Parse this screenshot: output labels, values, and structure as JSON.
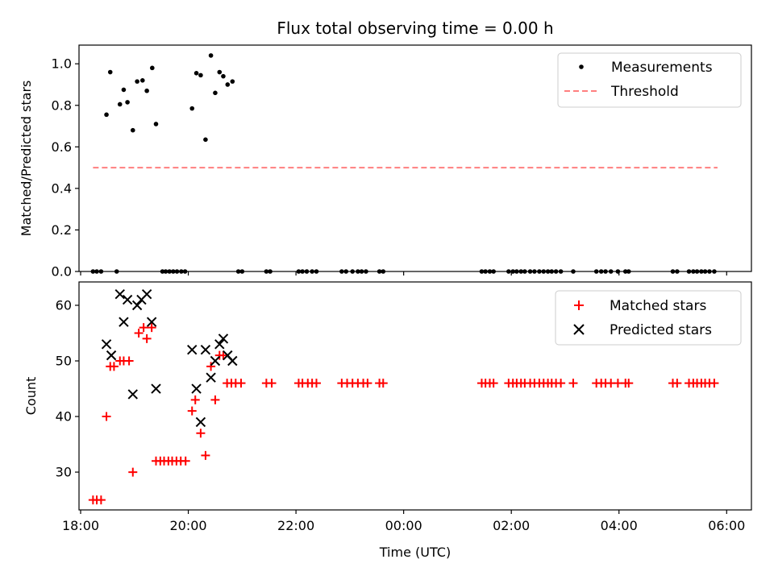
{
  "chart_data": [
    {
      "type": "scatter",
      "title": "Flux total observing time = 0.00 h",
      "xlabel": "",
      "ylabel": "Matched/Predicted stars",
      "xlim": [
        17.97,
        30.46
      ],
      "ylim": [
        0.0,
        1.09
      ],
      "yticks": [
        0.0,
        0.2,
        0.4,
        0.6,
        0.8,
        1.0
      ],
      "ytick_labels": [
        "0.0",
        "0.2",
        "0.4",
        "0.6",
        "0.8",
        "1.0"
      ],
      "legend": [
        "Measurements",
        "Threshold"
      ],
      "legend_position": "top-right",
      "series": [
        {
          "name": "Measurements",
          "marker": "dot",
          "color": "#000000",
          "points": [
            [
              18.23,
              0
            ],
            [
              18.3,
              0
            ],
            [
              18.38,
              0
            ],
            [
              18.48,
              0.755
            ],
            [
              18.55,
              0.96
            ],
            [
              18.67,
              0
            ],
            [
              18.73,
              0.805
            ],
            [
              18.8,
              0.875
            ],
            [
              18.87,
              0.815
            ],
            [
              18.97,
              0.68
            ],
            [
              19.05,
              0.915
            ],
            [
              19.15,
              0.92
            ],
            [
              19.23,
              0.87
            ],
            [
              19.33,
              0.98
            ],
            [
              19.4,
              0.71
            ],
            [
              19.52,
              0
            ],
            [
              19.58,
              0
            ],
            [
              19.65,
              0
            ],
            [
              19.72,
              0
            ],
            [
              19.79,
              0
            ],
            [
              19.87,
              0
            ],
            [
              19.94,
              0
            ],
            [
              20.07,
              0.785
            ],
            [
              20.15,
              0.955
            ],
            [
              20.23,
              0.945
            ],
            [
              20.32,
              0.635
            ],
            [
              20.42,
              1.04
            ],
            [
              20.5,
              0.86
            ],
            [
              20.58,
              0.96
            ],
            [
              20.65,
              0.94
            ],
            [
              20.73,
              0.9
            ],
            [
              20.82,
              0.915
            ],
            [
              20.93,
              0
            ],
            [
              21.0,
              0
            ],
            [
              21.45,
              0
            ],
            [
              21.52,
              0
            ],
            [
              22.05,
              0
            ],
            [
              22.12,
              0
            ],
            [
              22.2,
              0
            ],
            [
              22.3,
              0
            ],
            [
              22.38,
              0
            ],
            [
              22.85,
              0
            ],
            [
              22.93,
              0
            ],
            [
              23.05,
              0
            ],
            [
              23.15,
              0
            ],
            [
              23.22,
              0
            ],
            [
              23.3,
              0
            ],
            [
              23.55,
              0
            ],
            [
              23.62,
              0
            ],
            [
              25.45,
              0
            ],
            [
              25.52,
              0
            ],
            [
              25.6,
              0
            ],
            [
              25.67,
              0
            ],
            [
              25.95,
              0
            ],
            [
              26.03,
              0
            ],
            [
              26.1,
              0
            ],
            [
              26.18,
              0
            ],
            [
              26.25,
              0
            ],
            [
              26.35,
              0
            ],
            [
              26.43,
              0
            ],
            [
              26.52,
              0
            ],
            [
              26.6,
              0
            ],
            [
              26.68,
              0
            ],
            [
              26.75,
              0
            ],
            [
              26.83,
              0
            ],
            [
              26.92,
              0
            ],
            [
              27.15,
              0
            ],
            [
              27.58,
              0
            ],
            [
              27.67,
              0
            ],
            [
              27.75,
              0
            ],
            [
              27.85,
              0
            ],
            [
              27.98,
              0
            ],
            [
              28.12,
              0
            ],
            [
              28.18,
              0
            ],
            [
              29.0,
              0
            ],
            [
              29.08,
              0
            ],
            [
              29.3,
              0
            ],
            [
              29.38,
              0
            ],
            [
              29.45,
              0
            ],
            [
              29.53,
              0
            ],
            [
              29.6,
              0
            ],
            [
              29.68,
              0
            ],
            [
              29.77,
              0
            ]
          ]
        },
        {
          "name": "Threshold",
          "style": "dashed-line",
          "color": "#ff7f7f",
          "points": [
            [
              18.23,
              0.5
            ],
            [
              29.83,
              0.5
            ]
          ]
        }
      ]
    },
    {
      "type": "scatter",
      "title": "",
      "xlabel": "Time (UTC)",
      "ylabel": "Count",
      "xlim": [
        17.97,
        30.46
      ],
      "ylim": [
        23.2,
        64.2
      ],
      "yticks": [
        30,
        40,
        50,
        60
      ],
      "ytick_labels": [
        "30",
        "40",
        "50",
        "60"
      ],
      "xticks": [
        18,
        20,
        22,
        24,
        26,
        28,
        30
      ],
      "xtick_labels": [
        "18:00",
        "20:00",
        "22:00",
        "00:00",
        "02:00",
        "04:00",
        "06:00"
      ],
      "legend": [
        "Matched stars",
        "Predicted stars"
      ],
      "legend_position": "top-right",
      "series": [
        {
          "name": "Matched stars",
          "marker": "plus",
          "color": "#ff0000",
          "points": [
            [
              18.23,
              25
            ],
            [
              18.3,
              25
            ],
            [
              18.38,
              25
            ],
            [
              18.48,
              40
            ],
            [
              18.55,
              49
            ],
            [
              18.62,
              49
            ],
            [
              18.73,
              50
            ],
            [
              18.8,
              50
            ],
            [
              18.9,
              50
            ],
            [
              18.97,
              30
            ],
            [
              19.08,
              55
            ],
            [
              19.17,
              56
            ],
            [
              19.23,
              54
            ],
            [
              19.32,
              56
            ],
            [
              19.4,
              32
            ],
            [
              19.48,
              32
            ],
            [
              19.55,
              32
            ],
            [
              19.63,
              32
            ],
            [
              19.7,
              32
            ],
            [
              19.78,
              32
            ],
            [
              19.86,
              32
            ],
            [
              19.95,
              32
            ],
            [
              20.07,
              41
            ],
            [
              20.13,
              43
            ],
            [
              20.23,
              37
            ],
            [
              20.32,
              33
            ],
            [
              20.42,
              49
            ],
            [
              20.5,
              43
            ],
            [
              20.58,
              51
            ],
            [
              20.65,
              51
            ],
            [
              20.72,
              46
            ],
            [
              20.8,
              46
            ],
            [
              20.88,
              46
            ],
            [
              20.98,
              46
            ],
            [
              21.45,
              46
            ],
            [
              21.55,
              46
            ],
            [
              22.05,
              46
            ],
            [
              22.12,
              46
            ],
            [
              22.22,
              46
            ],
            [
              22.3,
              46
            ],
            [
              22.38,
              46
            ],
            [
              22.85,
              46
            ],
            [
              22.95,
              46
            ],
            [
              23.05,
              46
            ],
            [
              23.15,
              46
            ],
            [
              23.25,
              46
            ],
            [
              23.33,
              46
            ],
            [
              23.55,
              46
            ],
            [
              23.62,
              46
            ],
            [
              25.45,
              46
            ],
            [
              25.52,
              46
            ],
            [
              25.6,
              46
            ],
            [
              25.67,
              46
            ],
            [
              25.95,
              46
            ],
            [
              26.03,
              46
            ],
            [
              26.1,
              46
            ],
            [
              26.18,
              46
            ],
            [
              26.25,
              46
            ],
            [
              26.35,
              46
            ],
            [
              26.43,
              46
            ],
            [
              26.52,
              46
            ],
            [
              26.6,
              46
            ],
            [
              26.68,
              46
            ],
            [
              26.75,
              46
            ],
            [
              26.83,
              46
            ],
            [
              26.92,
              46
            ],
            [
              27.15,
              46
            ],
            [
              27.58,
              46
            ],
            [
              27.67,
              46
            ],
            [
              27.75,
              46
            ],
            [
              27.85,
              46
            ],
            [
              27.98,
              46
            ],
            [
              28.12,
              46
            ],
            [
              28.18,
              46
            ],
            [
              29.0,
              46
            ],
            [
              29.08,
              46
            ],
            [
              29.3,
              46
            ],
            [
              29.38,
              46
            ],
            [
              29.45,
              46
            ],
            [
              29.53,
              46
            ],
            [
              29.6,
              46
            ],
            [
              29.68,
              46
            ],
            [
              29.77,
              46
            ]
          ]
        },
        {
          "name": "Predicted stars",
          "marker": "x",
          "color": "#000000",
          "points": [
            [
              18.48,
              53
            ],
            [
              18.57,
              51
            ],
            [
              18.73,
              62
            ],
            [
              18.8,
              57
            ],
            [
              18.87,
              61
            ],
            [
              18.97,
              44
            ],
            [
              19.05,
              60
            ],
            [
              19.13,
              61
            ],
            [
              19.23,
              62
            ],
            [
              19.32,
              57
            ],
            [
              19.4,
              45
            ],
            [
              20.07,
              52
            ],
            [
              20.15,
              45
            ],
            [
              20.23,
              39
            ],
            [
              20.32,
              52
            ],
            [
              20.42,
              47
            ],
            [
              20.5,
              50
            ],
            [
              20.58,
              53
            ],
            [
              20.65,
              54
            ],
            [
              20.73,
              51
            ],
            [
              20.82,
              50
            ]
          ]
        }
      ]
    }
  ]
}
